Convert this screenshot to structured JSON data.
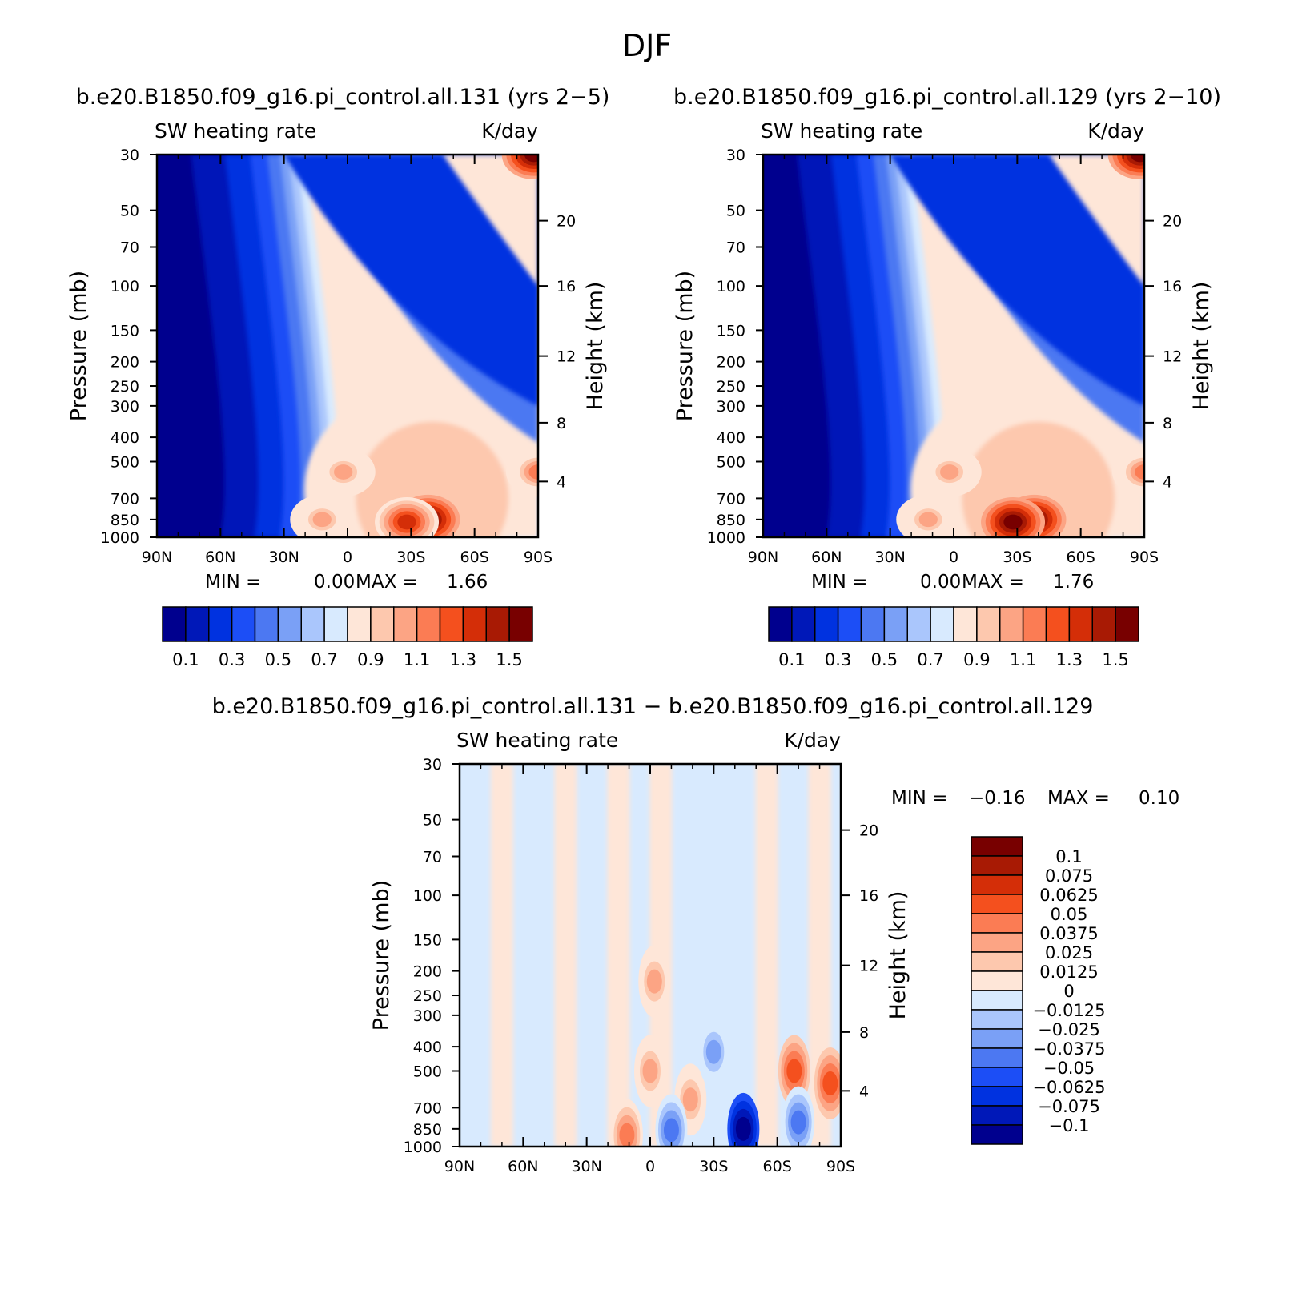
{
  "figure": {
    "title": "DJF"
  },
  "diff_title": "b.e20.B1850.f09_g16.pi_control.all.131 − b.e20.B1850.f09_g16.pi_control.all.129",
  "chart_data": [
    {
      "type": "heatmap",
      "title": "b.e20.B1850.f09_g16.pi_control.all.131 (yrs 2−5)",
      "left_label": "SW heating rate",
      "right_label": "K/day",
      "xlabel": "",
      "ylabel": "Pressure (mb)",
      "y2label": "Height (km)",
      "x_ticks": [
        "90N",
        "60N",
        "30N",
        "0",
        "30S",
        "60S",
        "90S"
      ],
      "y_ticks": [
        "30",
        "50",
        "70",
        "100",
        "150",
        "200",
        "250",
        "300",
        "400",
        "500",
        "700",
        "850",
        "1000"
      ],
      "y2_ticks": [
        "20",
        "16",
        "12",
        "8",
        "4"
      ],
      "ylim": [
        1000,
        30
      ],
      "y_scale": "log",
      "stats": {
        "min_label": "MIN =",
        "min": "0.00",
        "max_label": "MAX =",
        "max": "1.66"
      },
      "colorbar": {
        "orientation": "horizontal",
        "labels": [
          "0.1",
          "0.3",
          "0.5",
          "0.7",
          "0.9",
          "1.1",
          "1.3",
          "1.5"
        ],
        "colors": [
          "#00008e",
          "#0018b8",
          "#0032e0",
          "#1c4ef6",
          "#4c78f2",
          "#7aa0f6",
          "#aac6fc",
          "#d8eafe",
          "#fee6d8",
          "#fdc8ae",
          "#fca484",
          "#fb7c54",
          "#f4501e",
          "#d42e08",
          "#a81a04",
          "#780000"
        ]
      },
      "features": [
        {
          "lat": -38,
          "p": 850,
          "value": 1.6
        },
        {
          "lat": -28,
          "p": 870,
          "value": 1.4
        },
        {
          "lat": 12,
          "p": 850,
          "value": 1.0
        },
        {
          "lat": 2,
          "p": 550,
          "value": 1.0
        },
        {
          "lat": -88,
          "p": 30,
          "value": 1.6
        },
        {
          "lat": -90,
          "p": 550,
          "value": 1.1
        }
      ]
    },
    {
      "type": "heatmap",
      "title": "b.e20.B1850.f09_g16.pi_control.all.129 (yrs 2−10)",
      "left_label": "SW heating rate",
      "right_label": "K/day",
      "xlabel": "",
      "ylabel": "Pressure (mb)",
      "y2label": "Height (km)",
      "x_ticks": [
        "90N",
        "60N",
        "30N",
        "0",
        "30S",
        "60S",
        "90S"
      ],
      "y_ticks": [
        "30",
        "50",
        "70",
        "100",
        "150",
        "200",
        "250",
        "300",
        "400",
        "500",
        "700",
        "850",
        "1000"
      ],
      "y2_ticks": [
        "20",
        "16",
        "12",
        "8",
        "4"
      ],
      "ylim": [
        1000,
        30
      ],
      "y_scale": "log",
      "stats": {
        "min_label": "MIN =",
        "min": "0.00",
        "max_label": "MAX =",
        "max": "1.76"
      },
      "colorbar": {
        "orientation": "horizontal",
        "labels": [
          "0.1",
          "0.3",
          "0.5",
          "0.7",
          "0.9",
          "1.1",
          "1.3",
          "1.5"
        ],
        "colors": [
          "#00008e",
          "#0018b8",
          "#0032e0",
          "#1c4ef6",
          "#4c78f2",
          "#7aa0f6",
          "#aac6fc",
          "#d8eafe",
          "#fee6d8",
          "#fdc8ae",
          "#fca484",
          "#fb7c54",
          "#f4501e",
          "#d42e08",
          "#a81a04",
          "#780000"
        ]
      },
      "features": [
        {
          "lat": -38,
          "p": 850,
          "value": 1.7
        },
        {
          "lat": -28,
          "p": 870,
          "value": 1.5
        },
        {
          "lat": 12,
          "p": 850,
          "value": 1.0
        },
        {
          "lat": 2,
          "p": 550,
          "value": 1.0
        },
        {
          "lat": -88,
          "p": 30,
          "value": 1.7
        },
        {
          "lat": -90,
          "p": 550,
          "value": 1.1
        }
      ]
    },
    {
      "type": "heatmap",
      "title": "",
      "left_label": "SW heating rate",
      "right_label": "K/day",
      "xlabel": "",
      "ylabel": "Pressure (mb)",
      "y2label": "Height (km)",
      "x_ticks": [
        "90N",
        "60N",
        "30N",
        "0",
        "30S",
        "60S",
        "90S"
      ],
      "y_ticks": [
        "30",
        "50",
        "70",
        "100",
        "150",
        "200",
        "250",
        "300",
        "400",
        "500",
        "700",
        "850",
        "1000"
      ],
      "y2_ticks": [
        "20",
        "16",
        "12",
        "8",
        "4"
      ],
      "ylim": [
        1000,
        30
      ],
      "y_scale": "log",
      "stats": {
        "min_label": "MIN =",
        "min": "−0.16",
        "max_label": "MAX =",
        "max": "0.10"
      },
      "colorbar": {
        "orientation": "vertical",
        "labels": [
          "0.1",
          "0.075",
          "0.0625",
          "0.05",
          "0.0375",
          "0.025",
          "0.0125",
          "0",
          "−0.0125",
          "−0.025",
          "−0.0375",
          "−0.05",
          "−0.0625",
          "−0.075",
          "−0.1"
        ],
        "colors": [
          "#780000",
          "#a81a04",
          "#d42e08",
          "#f4501e",
          "#fb7c54",
          "#fca484",
          "#fdc8ae",
          "#fee6d8",
          "#d8eafe",
          "#aac6fc",
          "#7aa0f6",
          "#4c78f2",
          "#1c4ef6",
          "#0032e0",
          "#0018b8",
          "#00008e"
        ]
      },
      "features": [
        {
          "lat": -44,
          "p": 850,
          "value": -0.16
        },
        {
          "lat": -85,
          "p": 560,
          "value": 0.06
        },
        {
          "lat": -68,
          "p": 500,
          "value": 0.05
        },
        {
          "lat": -19,
          "p": 650,
          "value": 0.03
        },
        {
          "lat": 0,
          "p": 500,
          "value": 0.03
        },
        {
          "lat": -2,
          "p": 220,
          "value": 0.03
        },
        {
          "lat": 11,
          "p": 900,
          "value": 0.04
        },
        {
          "lat": -10,
          "p": 860,
          "value": -0.04
        },
        {
          "lat": -30,
          "p": 420,
          "value": -0.03
        },
        {
          "lat": -70,
          "p": 800,
          "value": -0.04
        }
      ]
    }
  ]
}
